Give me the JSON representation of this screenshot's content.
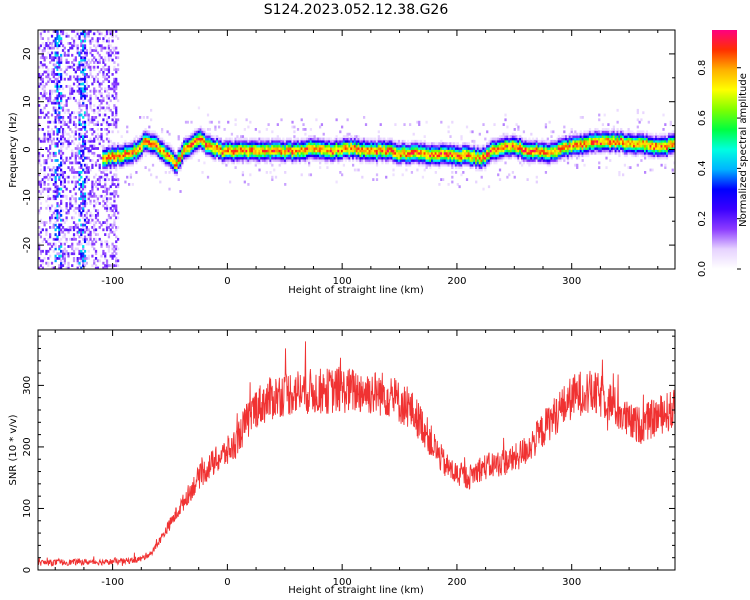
{
  "figure": {
    "title": "S124.2023.052.12.38.G26"
  },
  "colors": {
    "snr_line": "#f03232",
    "axis": "#000000",
    "background": "#ffffff",
    "colormap": [
      "#ffffff",
      "#e6d2ff",
      "#8c3cff",
      "#3a00ff",
      "#0000ff",
      "#00b4ff",
      "#00ffe0",
      "#00ff40",
      "#80ff00",
      "#ffff00",
      "#ffb000",
      "#ff3000",
      "#ff0080"
    ]
  },
  "chart_data": [
    {
      "type": "heatmap",
      "title": "S124.2023.052.12.38.G26",
      "xlabel": "Height of straight line (km)",
      "ylabel": "Frequency (Hz)",
      "xlim": [
        -165,
        390
      ],
      "ylim": [
        -25,
        25
      ],
      "x_ticks": [
        -100,
        0,
        100,
        200,
        300
      ],
      "y_ticks": [
        -20,
        -10,
        0,
        10,
        20
      ],
      "grid": false,
      "colorbar": {
        "label": "Normalized spectral amplitude",
        "range": [
          0,
          0.95
        ],
        "ticks": [
          "0.0",
          "0.2",
          "0.4",
          "0.6",
          "0.8"
        ]
      },
      "noise_region_x": [
        -165,
        -95
      ],
      "ridge": {
        "x": [
          -110,
          -95,
          -80,
          -72,
          -65,
          -60,
          -55,
          -50,
          -46,
          -42,
          -38,
          -33,
          -28,
          -24,
          -20,
          -15,
          -10,
          -5,
          0,
          10,
          20,
          30,
          40,
          50,
          60,
          70,
          80,
          90,
          100,
          110,
          120,
          130,
          140,
          150,
          160,
          170,
          180,
          190,
          200,
          210,
          220,
          225,
          230,
          240,
          250,
          260,
          270,
          280,
          290,
          300,
          310,
          320,
          330,
          340,
          350,
          360,
          370,
          380,
          390
        ],
        "freq": [
          -2,
          -1.5,
          -0.5,
          1.5,
          1,
          0,
          -1,
          -2,
          -3.5,
          -2,
          0,
          0.5,
          1.5,
          2,
          1,
          0.5,
          0,
          -0.5,
          -0.5,
          -0.5,
          -0.5,
          -0.5,
          -0.5,
          -0.5,
          -0.5,
          0,
          0,
          -0.5,
          0,
          0,
          -0.5,
          -0.5,
          -0.5,
          -1,
          -1,
          -1,
          -1.5,
          -1,
          -1.5,
          -1.5,
          -2,
          -1.5,
          -0.5,
          0.5,
          0.5,
          -0.5,
          -0.5,
          -1,
          0,
          0.5,
          1,
          1.5,
          1.5,
          1.5,
          1,
          1,
          0.5,
          0.5,
          1
        ]
      }
    },
    {
      "type": "line",
      "xlabel": "Height of straight line (km)",
      "ylabel": "SNR (10 * v/v)",
      "xlim": [
        -165,
        390
      ],
      "ylim": [
        0,
        390
      ],
      "x_ticks": [
        -100,
        0,
        100,
        200,
        300
      ],
      "y_ticks": [
        0,
        100,
        200,
        300
      ],
      "grid": false,
      "series": [
        {
          "color": "#f03232",
          "x": [
            -165,
            -150,
            -130,
            -110,
            -90,
            -75,
            -65,
            -55,
            -45,
            -35,
            -25,
            -15,
            -5,
            5,
            15,
            25,
            35,
            45,
            60,
            80,
            100,
            120,
            140,
            160,
            170,
            180,
            190,
            200,
            210,
            220,
            230,
            240,
            250,
            260,
            270,
            280,
            290,
            300,
            310,
            320,
            330,
            340,
            350,
            360,
            370,
            380,
            390
          ],
          "y": [
            12,
            12,
            13,
            13,
            14,
            18,
            30,
            60,
            90,
            120,
            150,
            170,
            185,
            200,
            235,
            265,
            275,
            285,
            290,
            290,
            292,
            290,
            285,
            260,
            235,
            200,
            170,
            155,
            150,
            165,
            170,
            175,
            180,
            195,
            215,
            240,
            260,
            280,
            290,
            285,
            280,
            260,
            240,
            235,
            245,
            255,
            260
          ]
        }
      ]
    }
  ]
}
